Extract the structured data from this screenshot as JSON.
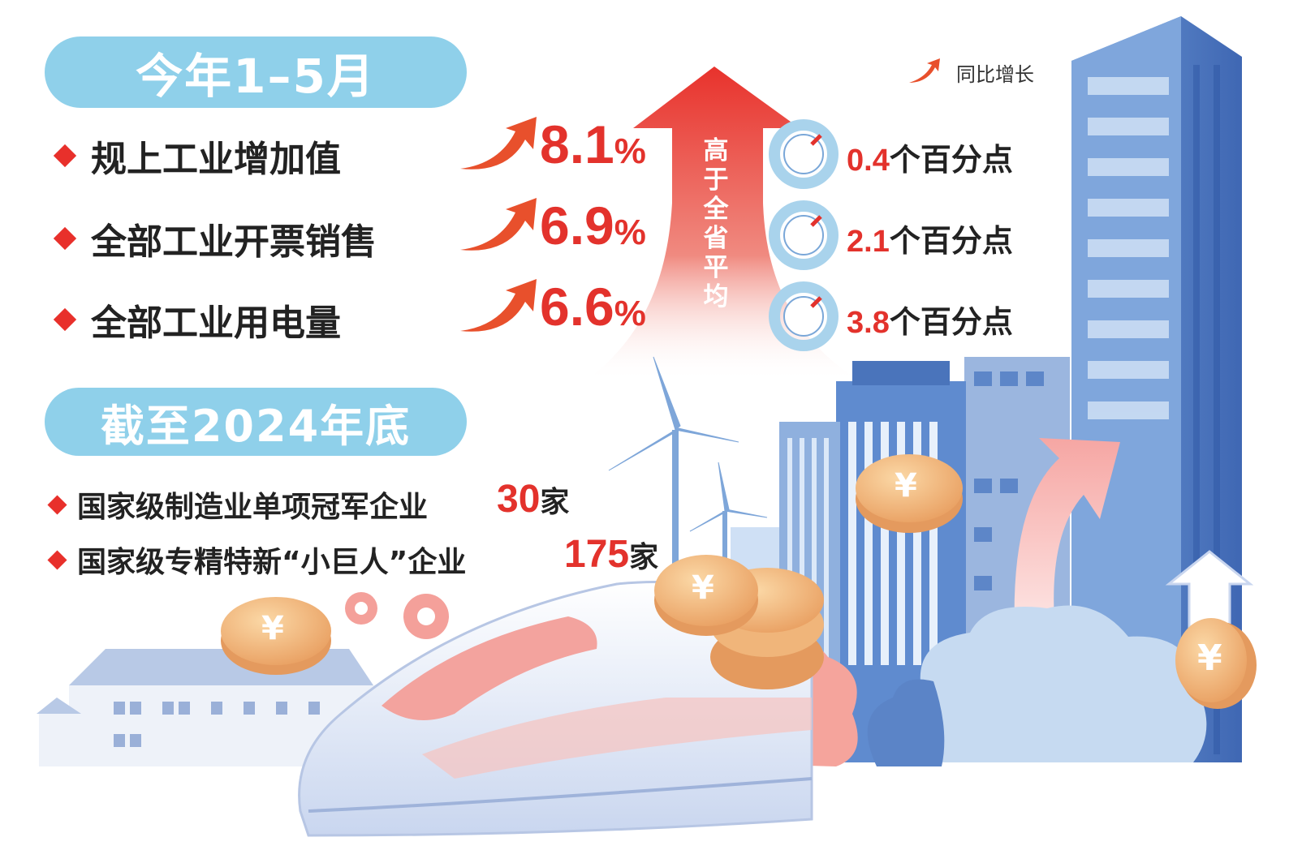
{
  "section1": {
    "title": "今年1–5月",
    "legend_label": "同比增长",
    "items": [
      {
        "label": "规上工业增加值",
        "value": "8.1",
        "unit": "%",
        "above_avg": "0.4",
        "above_unit": "个百分点"
      },
      {
        "label": "全部工业开票销售",
        "value": "6.9",
        "unit": "%",
        "above_avg": "2.1",
        "above_unit": "个百分点"
      },
      {
        "label": "全部工业用电量",
        "value": "6.6",
        "unit": "%",
        "above_avg": "3.8",
        "above_unit": "个百分点"
      }
    ],
    "arrow_text": [
      "高",
      "于",
      "全",
      "省",
      "平",
      "均"
    ]
  },
  "section2": {
    "title": "截至2024年底",
    "items": [
      {
        "label": "国家级制造业单项冠军企业",
        "value": "30",
        "unit": "家"
      },
      {
        "label": "国家级专精特新“小巨人”企业",
        "value": "175",
        "unit": "家"
      }
    ]
  },
  "coin_symbol": "¥",
  "colors": {
    "accent_red": "#e3322c",
    "pill_blue": "#8fd0ea",
    "building_blue": "#4e7cc4"
  }
}
